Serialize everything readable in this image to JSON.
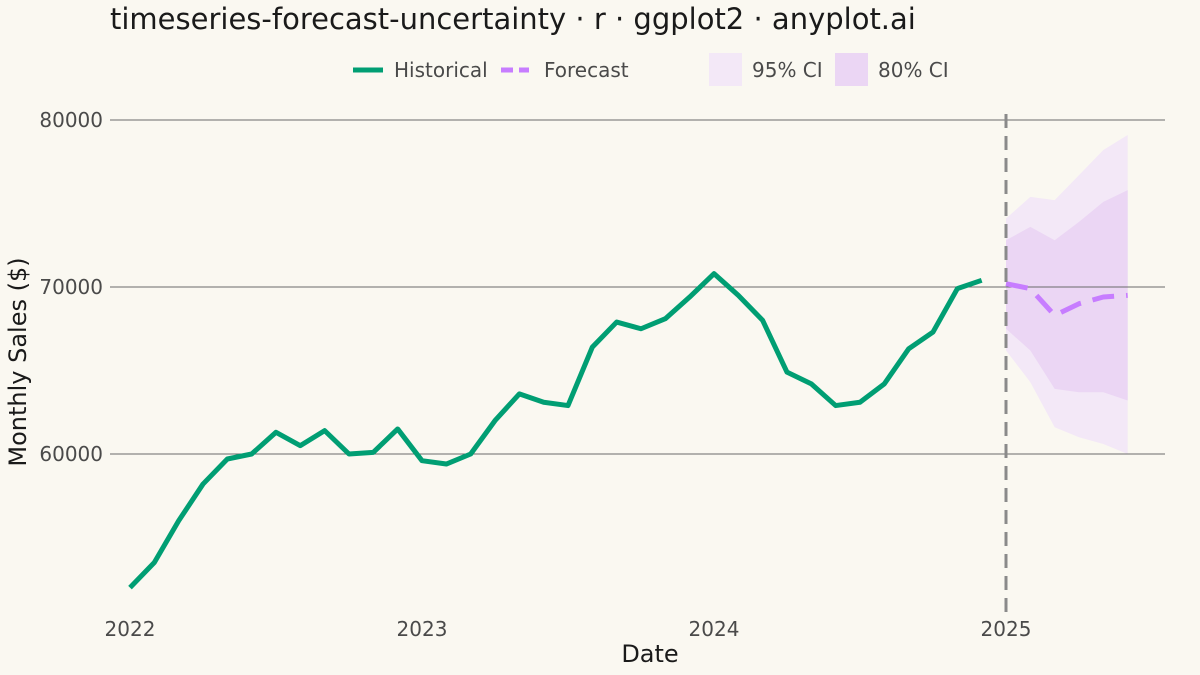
{
  "page": {
    "title": "timeseries-forecast-uncertainty · r · ggplot2 · anyplot.ai"
  },
  "chart_data": {
    "type": "line",
    "title": "timeseries-forecast-uncertainty · r · ggplot2 · anyplot.ai",
    "xlabel": "Date",
    "ylabel": "Monthly Sales ($)",
    "x_ticks": [
      "2022",
      "2023",
      "2024",
      "2025"
    ],
    "y_ticks": [
      60000,
      70000,
      80000
    ],
    "xlim": [
      "2022-01",
      "2025-06"
    ],
    "ylim": [
      52000,
      80000
    ],
    "grid": {
      "horizontal": true,
      "vertical": false
    },
    "legend": {
      "placement": "top",
      "entries": [
        "Historical",
        "Forecast",
        "95% CI",
        "80% CI"
      ]
    },
    "forecast_start": "2025-01",
    "colors": {
      "historical": "#009e73",
      "forecast": "#c77dff",
      "ci95": "#f3e8f7",
      "ci80": "#ebd6f4",
      "divider": "#8a8a8a",
      "grid": "#6a6a6a"
    },
    "series": [
      {
        "name": "Historical",
        "x": [
          "2022-01",
          "2022-02",
          "2022-03",
          "2022-04",
          "2022-05",
          "2022-06",
          "2022-07",
          "2022-08",
          "2022-09",
          "2022-10",
          "2022-11",
          "2022-12",
          "2023-01",
          "2023-02",
          "2023-03",
          "2023-04",
          "2023-05",
          "2023-06",
          "2023-07",
          "2023-08",
          "2023-09",
          "2023-10",
          "2023-11",
          "2023-12",
          "2024-01",
          "2024-02",
          "2024-03",
          "2024-04",
          "2024-05",
          "2024-06",
          "2024-07",
          "2024-08",
          "2024-09",
          "2024-10",
          "2024-11",
          "2024-12"
        ],
        "values": [
          52000,
          53500,
          56000,
          58200,
          59700,
          60000,
          61300,
          60500,
          61400,
          60000,
          60100,
          61500,
          59600,
          59400,
          60000,
          62000,
          63600,
          63100,
          62900,
          66400,
          67900,
          67500,
          68100,
          69400,
          70800,
          69500,
          68000,
          64900,
          64200,
          62900,
          63100,
          64200,
          66300,
          67300,
          69900,
          70400
        ]
      },
      {
        "name": "Forecast",
        "x": [
          "2025-01",
          "2025-02",
          "2025-03",
          "2025-04",
          "2025-05",
          "2025-06"
        ],
        "values": [
          70200,
          69900,
          68300,
          69000,
          69400,
          69500
        ]
      }
    ],
    "intervals": [
      {
        "name": "95% CI",
        "x": [
          "2025-01",
          "2025-02",
          "2025-03",
          "2025-04",
          "2025-05",
          "2025-06"
        ],
        "lower": [
          66200,
          64300,
          61600,
          61000,
          60600,
          60000
        ],
        "upper": [
          74100,
          75400,
          75200,
          76700,
          78200,
          79100
        ]
      },
      {
        "name": "80% CI",
        "x": [
          "2025-01",
          "2025-02",
          "2025-03",
          "2025-04",
          "2025-05",
          "2025-06"
        ],
        "lower": [
          67500,
          66200,
          63900,
          63700,
          63700,
          63200
        ],
        "upper": [
          72800,
          73600,
          72800,
          73900,
          75100,
          75800
        ]
      }
    ]
  }
}
